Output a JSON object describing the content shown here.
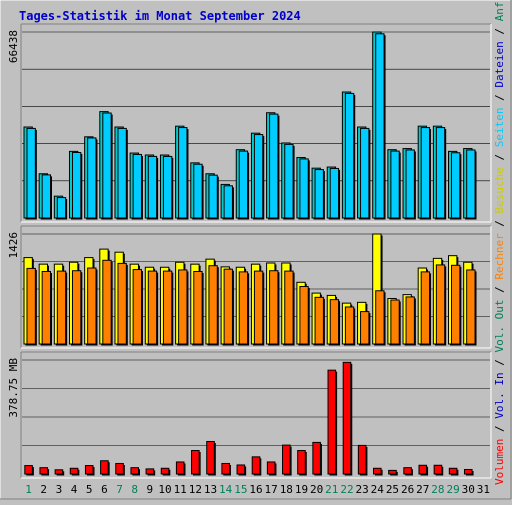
{
  "title": "Tages-Statistik im Monat September 2024",
  "colors": {
    "background": "#c0c0c0",
    "plot_bg": "#c0c0c0",
    "title": "#0000cc",
    "anfragen": "#00cccc",
    "dateien": "#0080ff",
    "seiten": "#00ccff",
    "besuche": "#ffff00",
    "rechner": "#ff8000",
    "volumen": "#ff0000",
    "weekend_label": "#00805a",
    "weekday_label": "#000000",
    "shadow": "#000000"
  },
  "right_labels": {
    "top": [
      {
        "text": "Anfragen",
        "color": "#00805a"
      },
      {
        "text": " / ",
        "color": "#000000"
      },
      {
        "text": "Dateien",
        "color": "#0000cc"
      },
      {
        "text": " / ",
        "color": "#000000"
      },
      {
        "text": "Seiten",
        "color": "#00ccff"
      },
      {
        "text": " / ",
        "color": "#000000"
      },
      {
        "text": "Besuche",
        "color": "#cccc00"
      },
      {
        "text": " / ",
        "color": "#000000"
      },
      {
        "text": "Rechner",
        "color": "#ff8000"
      },
      {
        "text": " / ",
        "color": "#000000"
      },
      {
        "text": "Vol. Out",
        "color": "#00805a"
      },
      {
        "text": " / ",
        "color": "#000000"
      },
      {
        "text": "Vol. In",
        "color": "#0000cc"
      },
      {
        "text": " / ",
        "color": "#000000"
      },
      {
        "text": "Volumen",
        "color": "#ff0000"
      }
    ]
  },
  "chart_data": [
    {
      "type": "bar",
      "panel": "hits",
      "ymax_label": "66438",
      "ylim": [
        0,
        66438
      ],
      "categories": [
        "1",
        "2",
        "3",
        "4",
        "5",
        "6",
        "7",
        "8",
        "9",
        "10",
        "11",
        "12",
        "13",
        "14",
        "15",
        "16",
        "17",
        "18",
        "19",
        "20",
        "21",
        "22",
        "23",
        "24",
        "25",
        "26",
        "27",
        "28",
        "29",
        "30",
        "31"
      ],
      "weekend": [
        "1",
        "7",
        "8",
        "14",
        "15",
        "21",
        "22",
        "28",
        "29"
      ],
      "series": [
        {
          "name": "Anfragen",
          "values": [
            32500,
            15800,
            7800,
            23800,
            29000,
            38000,
            32500,
            23200,
            22500,
            22500,
            32800,
            19700,
            15800,
            12000,
            24400,
            30300,
            37600,
            26800,
            21600,
            17800,
            18200,
            45000,
            32500,
            66438,
            24400,
            24800,
            32800,
            32800,
            23800,
            24800,
            0
          ]
        },
        {
          "name": "Dateien",
          "values": [
            32000,
            15400,
            7300,
            23400,
            28600,
            37500,
            32000,
            22700,
            22000,
            22000,
            32300,
            19200,
            15300,
            11500,
            23900,
            29800,
            37100,
            26300,
            21100,
            17300,
            17700,
            44500,
            32000,
            65800,
            23900,
            24300,
            32300,
            32300,
            23300,
            24300,
            0
          ]
        }
      ]
    },
    {
      "type": "bar",
      "panel": "visits",
      "ymax_label": "1426",
      "ylim": [
        0,
        1426
      ],
      "categories": [
        "1",
        "2",
        "3",
        "4",
        "5",
        "6",
        "7",
        "8",
        "9",
        "10",
        "11",
        "12",
        "13",
        "14",
        "15",
        "16",
        "17",
        "18",
        "19",
        "20",
        "21",
        "22",
        "23",
        "24",
        "25",
        "26",
        "27",
        "28",
        "29",
        "30",
        "31"
      ],
      "series": [
        {
          "name": "Besuche",
          "values": [
            1120,
            1035,
            1035,
            1060,
            1120,
            1230,
            1190,
            1035,
            995,
            995,
            1060,
            1035,
            1100,
            1000,
            995,
            1035,
            1050,
            1050,
            800,
            660,
            630,
            530,
            540,
            1426,
            590,
            640,
            985,
            1110,
            1145,
            1060,
            0
          ]
        },
        {
          "name": "Rechner",
          "values": [
            980,
            940,
            945,
            950,
            985,
            1085,
            1045,
            965,
            945,
            945,
            960,
            940,
            1015,
            970,
            935,
            945,
            950,
            945,
            745,
            605,
            575,
            480,
            420,
            690,
            570,
            610,
            935,
            1025,
            1020,
            960,
            0
          ]
        }
      ]
    },
    {
      "type": "bar",
      "panel": "volume",
      "ymax_label": "378.75 MB",
      "ylim": [
        0,
        378.75
      ],
      "categories": [
        "1",
        "2",
        "3",
        "4",
        "5",
        "6",
        "7",
        "8",
        "9",
        "10",
        "11",
        "12",
        "13",
        "14",
        "15",
        "16",
        "17",
        "18",
        "19",
        "20",
        "21",
        "22",
        "23",
        "24",
        "25",
        "26",
        "27",
        "28",
        "29",
        "30",
        "31"
      ],
      "series": [
        {
          "name": "Volumen",
          "values": [
            28,
            21,
            14,
            19,
            28,
            44,
            35,
            21,
            17,
            19,
            40,
            78,
            108,
            35,
            30,
            57,
            40,
            96,
            78,
            105,
            345,
            371,
            95,
            19,
            12,
            21,
            29,
            29,
            19,
            15,
            0
          ]
        }
      ]
    }
  ]
}
